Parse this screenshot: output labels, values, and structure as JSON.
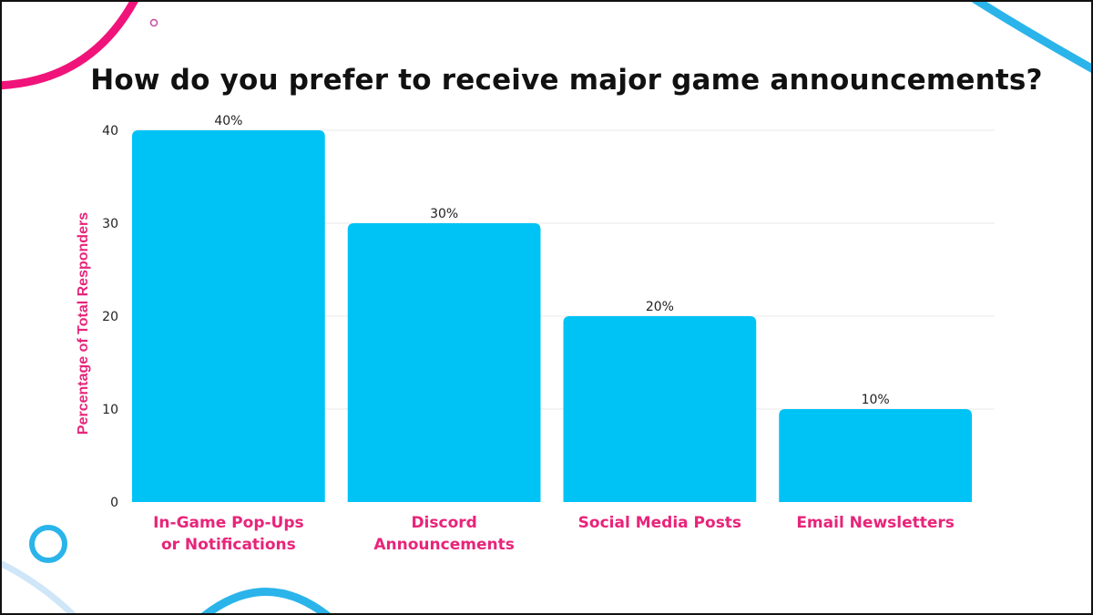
{
  "colors": {
    "bar": "#00c3f5",
    "accent_pink": "#f0147a",
    "accent_blue": "#2ab4ea",
    "text_dark": "#111111",
    "grid": "#e9e9e9"
  },
  "chart_data": {
    "type": "bar",
    "title": "How do you prefer to receive major game announcements?",
    "ylabel": "Percentage of Total Responders",
    "xlabel": "",
    "ylim": [
      0,
      40
    ],
    "yticks": [
      0,
      10,
      20,
      30,
      40
    ],
    "grid": true,
    "legend": "none",
    "categories": [
      [
        "In-Game Pop-Ups",
        "or Notifications"
      ],
      [
        "Discord",
        "Announcements"
      ],
      [
        "Social Media Posts"
      ],
      [
        "Email Newsletters"
      ]
    ],
    "values": [
      40,
      30,
      20,
      10
    ],
    "data_labels": [
      "40%",
      "30%",
      "20%",
      "10%"
    ]
  }
}
